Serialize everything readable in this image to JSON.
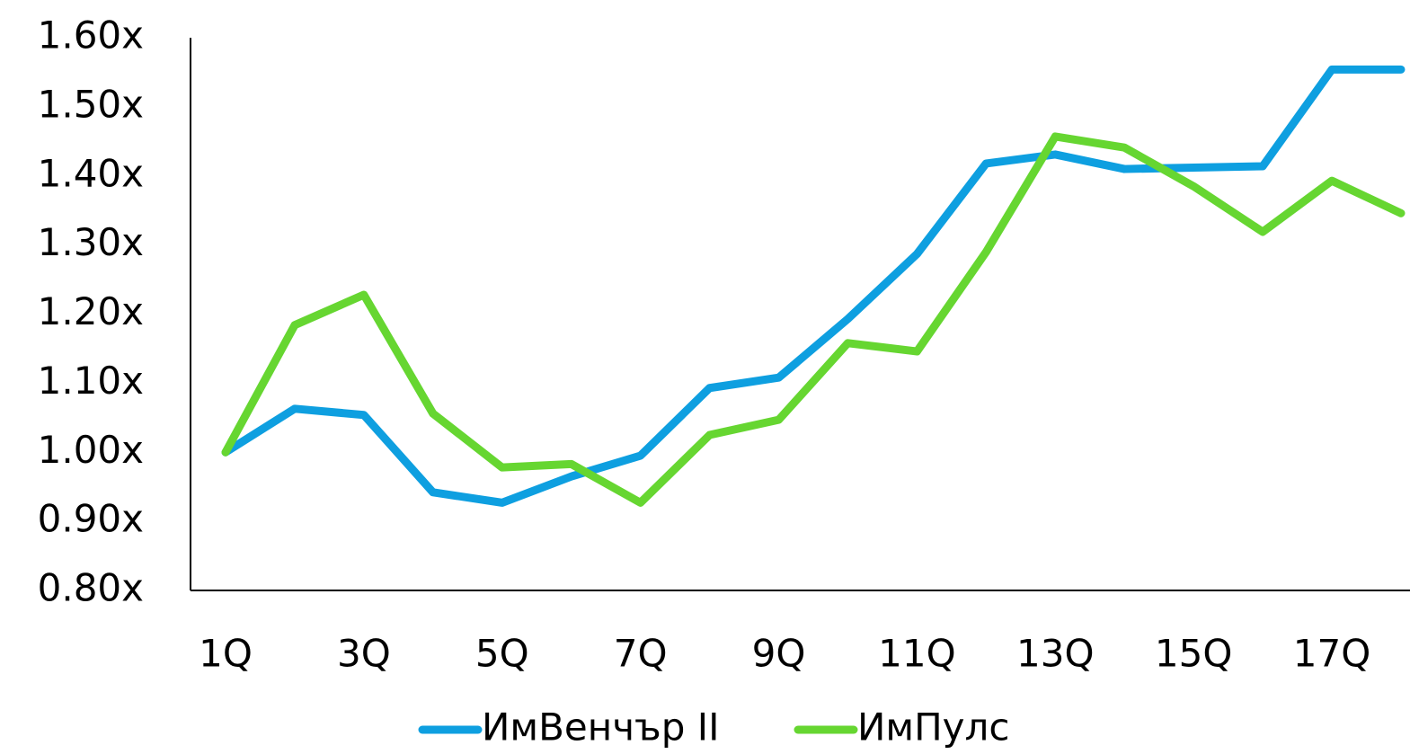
{
  "chart_data": {
    "type": "line",
    "categories": [
      "1Q",
      null,
      "3Q",
      null,
      "5Q",
      null,
      "7Q",
      null,
      "9Q",
      null,
      "11Q",
      null,
      "13Q",
      null,
      "15Q",
      null,
      "17Q",
      null
    ],
    "series": [
      {
        "name": "ИмВенчър II",
        "color": "#0e9fe0",
        "values": [
          1.0,
          1.063,
          1.054,
          0.942,
          0.927,
          0.965,
          0.995,
          1.093,
          1.108,
          1.193,
          1.287,
          1.418,
          1.431,
          1.41,
          1.412,
          1.414,
          1.554,
          1.554
        ]
      },
      {
        "name": "ИмПулс",
        "color": "#66d631",
        "values": [
          1.0,
          1.184,
          1.228,
          1.056,
          0.978,
          0.983,
          0.927,
          1.025,
          1.047,
          1.158,
          1.146,
          1.29,
          1.457,
          1.441,
          1.385,
          1.319,
          1.393,
          1.346
        ]
      }
    ],
    "ylim": [
      0.8,
      1.6
    ],
    "yticks": [
      {
        "value": 0.8,
        "label": "0.80x"
      },
      {
        "value": 0.9,
        "label": "0.90x"
      },
      {
        "value": 1.0,
        "label": "1.00x"
      },
      {
        "value": 1.1,
        "label": "1.10x"
      },
      {
        "value": 1.2,
        "label": "1.20x"
      },
      {
        "value": 1.3,
        "label": "1.30x"
      },
      {
        "value": 1.4,
        "label": "1.40x"
      },
      {
        "value": 1.5,
        "label": "1.50x"
      },
      {
        "value": 1.6,
        "label": "1.60x"
      }
    ],
    "grid": false,
    "legend": "bottom"
  }
}
